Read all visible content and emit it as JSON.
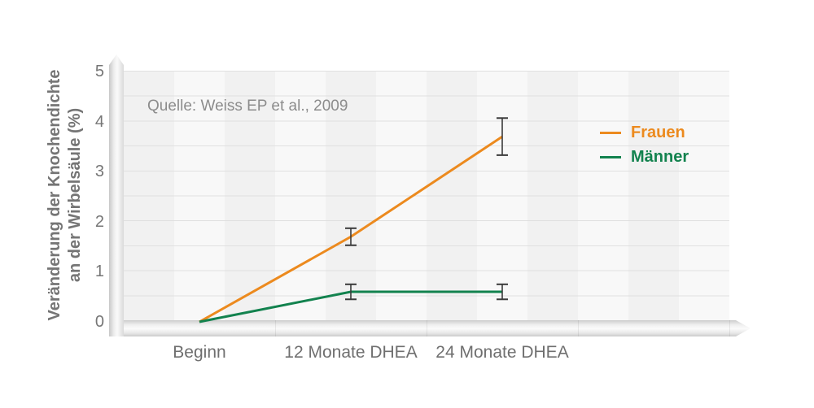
{
  "chart_data": {
    "type": "line",
    "title": "",
    "source_note": "Quelle: Weiss EP et al., 2009",
    "ylabel_line1": "Veränderung der Knochendichte",
    "ylabel_line2": "an der Wirbelsäule (%)",
    "categories": [
      "Beginn",
      "12 Monate DHEA",
      "24 Monate DHEA"
    ],
    "yticks_top_to_bottom": [
      "5",
      "4",
      "3",
      "2",
      "1",
      "0"
    ],
    "ylim": [
      0,
      5
    ],
    "grid": "horizontal gridlines every 0.5, vertical stripe banding, no chart border",
    "legend_position": "inside plot, right",
    "series": [
      {
        "name": "Frauen",
        "color": "#EC8A1E",
        "values": [
          0,
          1.7,
          3.7
        ],
        "error": [
          null,
          0.17,
          0.37
        ]
      },
      {
        "name": "Männer",
        "color": "#12824E",
        "values": [
          0,
          0.6,
          0.6
        ],
        "error": [
          null,
          0.15,
          0.15
        ]
      }
    ],
    "error_bar_color": "#3a3a3a",
    "axis_style": "3D beveled light-gray bars with arrowheads"
  }
}
